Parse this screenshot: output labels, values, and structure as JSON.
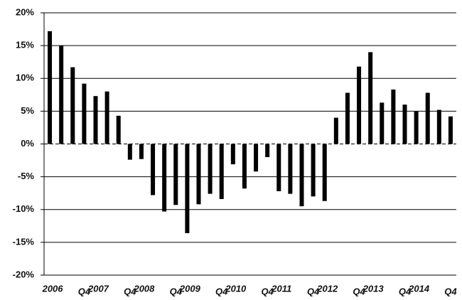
{
  "chart_data": {
    "type": "bar",
    "categories": [
      "2006",
      null,
      null,
      "Q4",
      "2007",
      null,
      null,
      "Q4",
      "2008",
      null,
      null,
      "Q4",
      "2009",
      null,
      null,
      "Q4",
      "2010",
      null,
      null,
      "Q4",
      "2011",
      null,
      null,
      "Q4",
      "2012",
      null,
      null,
      "Q4",
      "2013",
      null,
      null,
      "Q4",
      "2014",
      null,
      null,
      "Q4"
    ],
    "values": [
      17.2,
      15,
      11.7,
      9.2,
      7.3,
      8,
      4.3,
      -2.4,
      -2.3,
      -7.8,
      -10.3,
      -9.3,
      -13.6,
      -9.2,
      -7.6,
      -8.4,
      -3.1,
      -6.8,
      -4.2,
      -2,
      -7.2,
      -7.6,
      -9.5,
      -8,
      -8.7,
      4,
      7.8,
      11.8,
      14,
      6.3,
      8.3,
      6,
      5,
      7.8,
      5.2,
      4.2
    ],
    "color": "#000000",
    "ylim": [
      -20,
      20
    ],
    "yticks": [
      {
        "value": -20,
        "label": "-20%"
      },
      {
        "value": -15,
        "label": "-15%"
      },
      {
        "value": -10,
        "label": "-10%"
      },
      {
        "value": -5,
        "label": "-5%"
      },
      {
        "value": 0,
        "label": "0%"
      },
      {
        "value": 5,
        "label": "5%"
      },
      {
        "value": 10,
        "label": "10%"
      },
      {
        "value": 15,
        "label": "15%"
      },
      {
        "value": 20,
        "label": "20%"
      }
    ],
    "grid": true
  }
}
